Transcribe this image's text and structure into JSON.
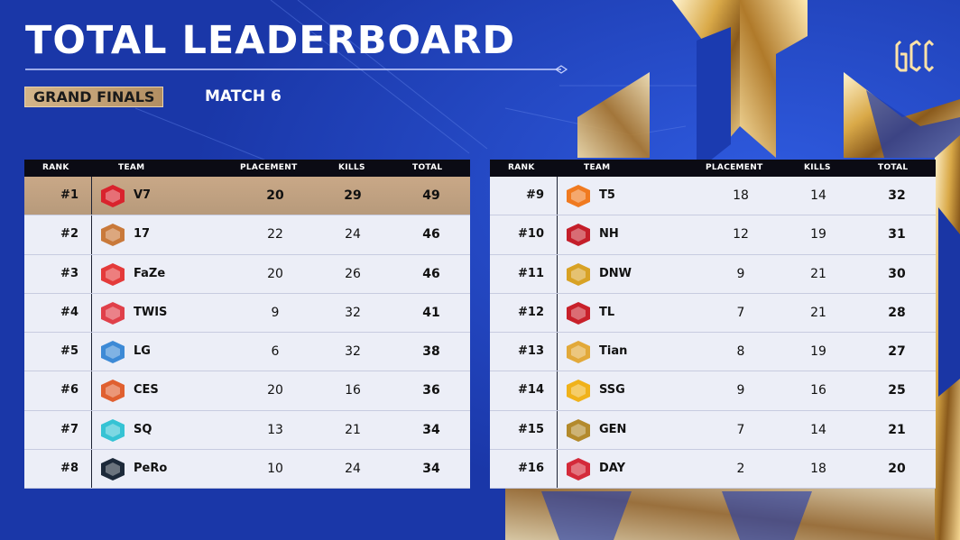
{
  "header": {
    "title": "TOTAL LEADERBOARD",
    "stage": "GRAND FINALS",
    "match": "MATCH 6",
    "logo_icon": "pgc-logo-icon"
  },
  "columns": {
    "rank": "RANK",
    "team": "TEAM",
    "placement": "PLACEMENT",
    "kills": "KILLS",
    "total": "TOTAL"
  },
  "colors": {
    "background": "#1d40b8",
    "gold": "#c9a887",
    "row": "#eceef7",
    "header": "#0b0b14"
  },
  "left": [
    {
      "rank": "#1",
      "team": "V7",
      "placement": "20",
      "kills": "29",
      "total": "49",
      "icon": "v7-logo-icon",
      "color": "#d9232d"
    },
    {
      "rank": "#2",
      "team": "17",
      "placement": "22",
      "kills": "24",
      "total": "46",
      "icon": "17-gaming-logo-icon",
      "color": "#c9793a"
    },
    {
      "rank": "#3",
      "team": "FaZe",
      "placement": "20",
      "kills": "26",
      "total": "46",
      "icon": "faze-logo-icon",
      "color": "#e43a3a"
    },
    {
      "rank": "#4",
      "team": "TWIS",
      "placement": "9",
      "kills": "32",
      "total": "41",
      "icon": "twis-logo-icon",
      "color": "#e0404a"
    },
    {
      "rank": "#5",
      "team": "LG",
      "placement": "6",
      "kills": "32",
      "total": "38",
      "icon": "lg-logo-icon",
      "color": "#3d8ad6"
    },
    {
      "rank": "#6",
      "team": "CES",
      "placement": "20",
      "kills": "16",
      "total": "36",
      "icon": "ces-logo-icon",
      "color": "#e06030"
    },
    {
      "rank": "#7",
      "team": "SQ",
      "placement": "13",
      "kills": "21",
      "total": "34",
      "icon": "sq-logo-icon",
      "color": "#36c3d4"
    },
    {
      "rank": "#8",
      "team": "PeRo",
      "placement": "10",
      "kills": "24",
      "total": "34",
      "icon": "pero-logo-icon",
      "color": "#1d2a3a"
    }
  ],
  "right": [
    {
      "rank": "#9",
      "team": "T5",
      "placement": "18",
      "kills": "14",
      "total": "32",
      "icon": "t5-logo-icon",
      "color": "#f07a20"
    },
    {
      "rank": "#10",
      "team": "NH",
      "placement": "12",
      "kills": "19",
      "total": "31",
      "icon": "nh-logo-icon",
      "color": "#c41e2a"
    },
    {
      "rank": "#11",
      "team": "DNW",
      "placement": "9",
      "kills": "21",
      "total": "30",
      "icon": "dnw-logo-icon",
      "color": "#d8a225"
    },
    {
      "rank": "#12",
      "team": "TL",
      "placement": "7",
      "kills": "21",
      "total": "28",
      "icon": "tylo-logo-icon",
      "color": "#c8202a"
    },
    {
      "rank": "#13",
      "team": "Tian",
      "placement": "8",
      "kills": "19",
      "total": "27",
      "icon": "tian-logo-icon",
      "color": "#e2a93a"
    },
    {
      "rank": "#14",
      "team": "SSG",
      "placement": "9",
      "kills": "16",
      "total": "25",
      "icon": "ssg-logo-icon",
      "color": "#f0b21a"
    },
    {
      "rank": "#15",
      "team": "GEN",
      "placement": "7",
      "kills": "14",
      "total": "21",
      "icon": "gen-logo-icon",
      "color": "#b38a2c"
    },
    {
      "rank": "#16",
      "team": "DAY",
      "placement": "2",
      "kills": "18",
      "total": "20",
      "icon": "day-logo-icon",
      "color": "#d42a3a"
    }
  ]
}
